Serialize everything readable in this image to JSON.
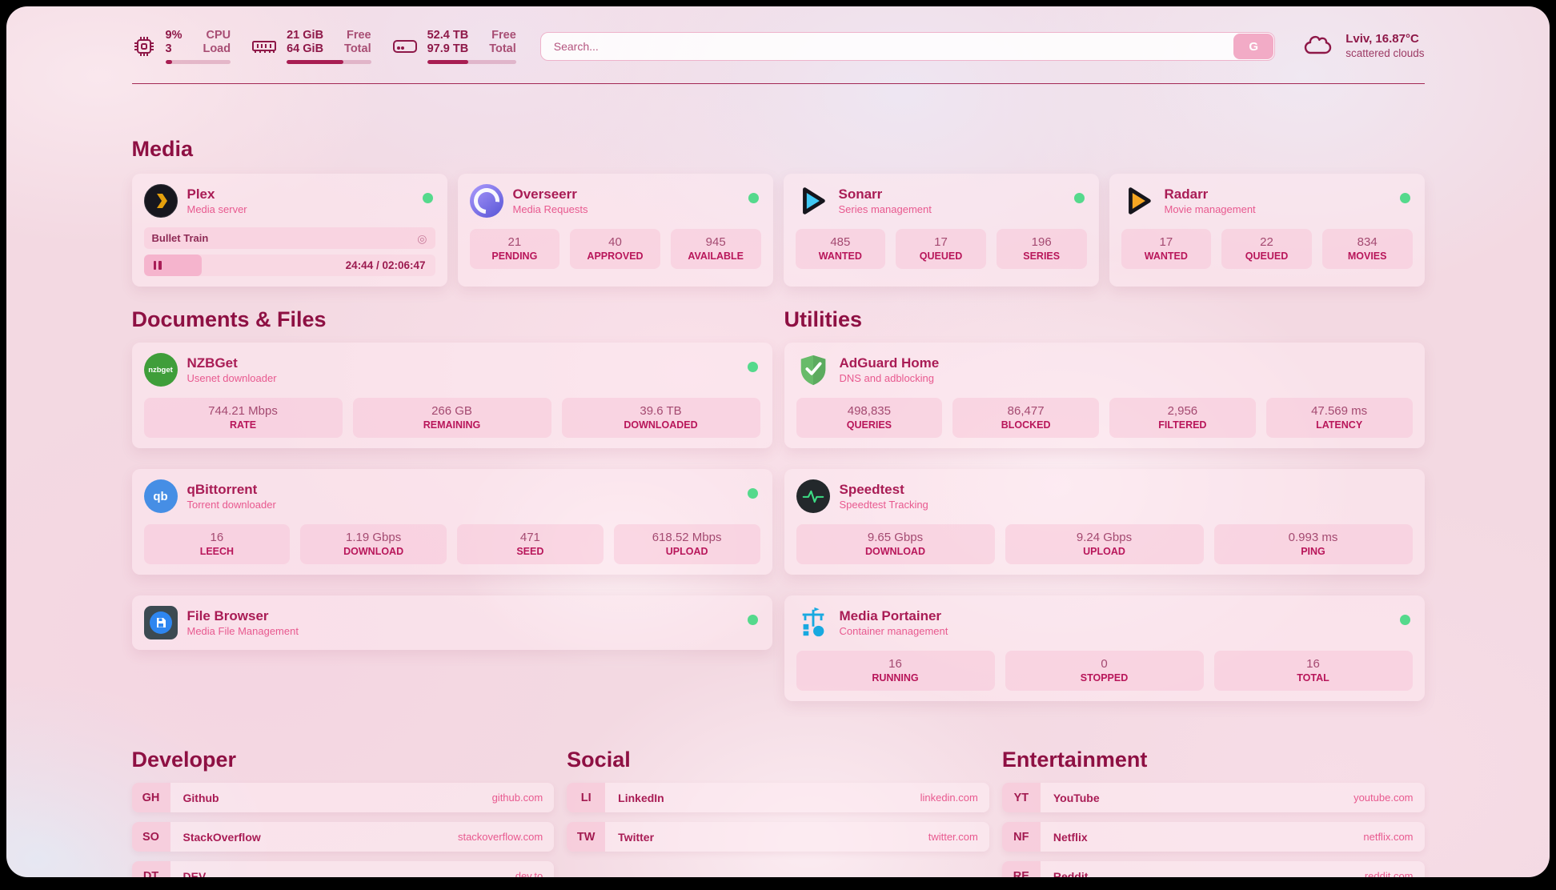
{
  "header": {
    "cpu": {
      "line1": "9%",
      "line2": "3",
      "label1": "CPU",
      "label2": "Load",
      "progress_pct": 10
    },
    "memory": {
      "line1": "21 GiB",
      "line2": "64 GiB",
      "label1": "Free",
      "label2": "Total",
      "progress_pct": 67
    },
    "disk": {
      "line1": "52.4 TB",
      "line2": "97.9 TB",
      "label1": "Free",
      "label2": "Total",
      "progress_pct": 46
    },
    "search": {
      "placeholder": "Search...",
      "button_label": "G"
    },
    "weather": {
      "location": "Lviv, 16.87°C",
      "condition": "scattered clouds"
    }
  },
  "sections": {
    "media": "Media",
    "documents": "Documents & Files",
    "utilities": "Utilities",
    "developer": "Developer",
    "social": "Social",
    "entertainment": "Entertainment"
  },
  "apps": {
    "plex": {
      "name": "Plex",
      "desc": "Media server",
      "status": "online",
      "now_playing": {
        "title": "Bullet Train",
        "time": "24:44 / 02:06:47",
        "progress_pct": 20,
        "cast_icon": "◎"
      }
    },
    "overseerr": {
      "name": "Overseerr",
      "desc": "Media Requests",
      "status": "online",
      "stats": [
        {
          "value": "21",
          "label": "PENDING"
        },
        {
          "value": "40",
          "label": "APPROVED"
        },
        {
          "value": "945",
          "label": "AVAILABLE"
        }
      ]
    },
    "sonarr": {
      "name": "Sonarr",
      "desc": "Series management",
      "status": "online",
      "stats": [
        {
          "value": "485",
          "label": "WANTED"
        },
        {
          "value": "17",
          "label": "QUEUED"
        },
        {
          "value": "196",
          "label": "SERIES"
        }
      ]
    },
    "radarr": {
      "name": "Radarr",
      "desc": "Movie management",
      "status": "online",
      "stats": [
        {
          "value": "17",
          "label": "WANTED"
        },
        {
          "value": "22",
          "label": "QUEUED"
        },
        {
          "value": "834",
          "label": "MOVIES"
        }
      ]
    },
    "nzbget": {
      "name": "NZBGet",
      "desc": "Usenet downloader",
      "status": "online",
      "icon_text": "nzbget",
      "stats": [
        {
          "value": "744.21 Mbps",
          "label": "RATE"
        },
        {
          "value": "266 GB",
          "label": "REMAINING"
        },
        {
          "value": "39.6 TB",
          "label": "DOWNLOADED"
        }
      ]
    },
    "adguard": {
      "name": "AdGuard Home",
      "desc": "DNS and adblocking",
      "stats": [
        {
          "value": "498,835",
          "label": "QUERIES"
        },
        {
          "value": "86,477",
          "label": "BLOCKED"
        },
        {
          "value": "2,956",
          "label": "FILTERED"
        },
        {
          "value": "47.569 ms",
          "label": "LATENCY"
        }
      ]
    },
    "qbittorrent": {
      "name": "qBittorrent",
      "desc": "Torrent downloader",
      "status": "online",
      "icon_text": "qb",
      "stats": [
        {
          "value": "16",
          "label": "LEECH"
        },
        {
          "value": "1.19 Gbps",
          "label": "DOWNLOAD"
        },
        {
          "value": "471",
          "label": "SEED"
        },
        {
          "value": "618.52 Mbps",
          "label": "UPLOAD"
        }
      ]
    },
    "speedtest": {
      "name": "Speedtest",
      "desc": "Speedtest Tracking",
      "stats": [
        {
          "value": "9.65 Gbps",
          "label": "DOWNLOAD"
        },
        {
          "value": "9.24 Gbps",
          "label": "UPLOAD"
        },
        {
          "value": "0.993 ms",
          "label": "PING"
        }
      ]
    },
    "filebrowser": {
      "name": "File Browser",
      "desc": "Media File Management",
      "status": "online"
    },
    "portainer": {
      "name": "Media Portainer",
      "desc": "Container management",
      "status": "online",
      "stats": [
        {
          "value": "16",
          "label": "RUNNING"
        },
        {
          "value": "0",
          "label": "STOPPED"
        },
        {
          "value": "16",
          "label": "TOTAL"
        }
      ]
    }
  },
  "bookmarks": {
    "developer": [
      {
        "abbr": "GH",
        "name": "Github",
        "url": "github.com"
      },
      {
        "abbr": "SO",
        "name": "StackOverflow",
        "url": "stackoverflow.com"
      },
      {
        "abbr": "DT",
        "name": "DEV",
        "url": "dev.to"
      }
    ],
    "social": [
      {
        "abbr": "LI",
        "name": "LinkedIn",
        "url": "linkedin.com"
      },
      {
        "abbr": "TW",
        "name": "Twitter",
        "url": "twitter.com"
      }
    ],
    "entertainment": [
      {
        "abbr": "YT",
        "name": "YouTube",
        "url": "youtube.com"
      },
      {
        "abbr": "NF",
        "name": "Netflix",
        "url": "netflix.com"
      },
      {
        "abbr": "RE",
        "name": "Reddit",
        "url": "reddit.com"
      }
    ]
  },
  "colors": {
    "accent": "#a21a50",
    "status_online": "#55d98c",
    "plex_amber": "#e5a00d",
    "sonarr_blue": "#40c8f4",
    "radarr_orange": "#f5a623",
    "nzbget_green": "#3f9e3a",
    "qbittorrent_blue": "#468ee5",
    "adguard_green": "#68bb6a",
    "speedtest_green": "#3ddc84",
    "portainer_blue": "#18a9e0",
    "filebrowser_blue": "#2e86f0"
  }
}
